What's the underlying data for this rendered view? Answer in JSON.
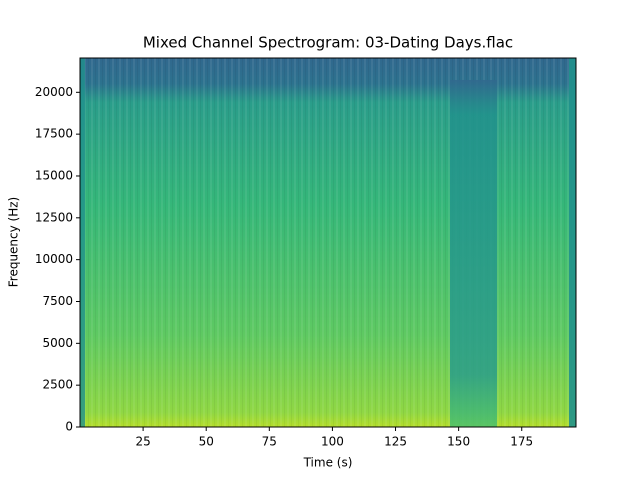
{
  "chart_data": {
    "type": "spectrogram",
    "title": "Mixed Channel Spectrogram: 03-Dating Days.flac",
    "x_label": "Time (s)",
    "y_label": "Frequency (Hz)",
    "xlim": [
      0,
      196.5
    ],
    "xticks": [
      25,
      50,
      75,
      100,
      125,
      150,
      175
    ],
    "ylim": [
      0,
      22050
    ],
    "yticks": [
      0,
      2500,
      5000,
      7500,
      10000,
      12500,
      15000,
      17500,
      20000
    ]
  }
}
